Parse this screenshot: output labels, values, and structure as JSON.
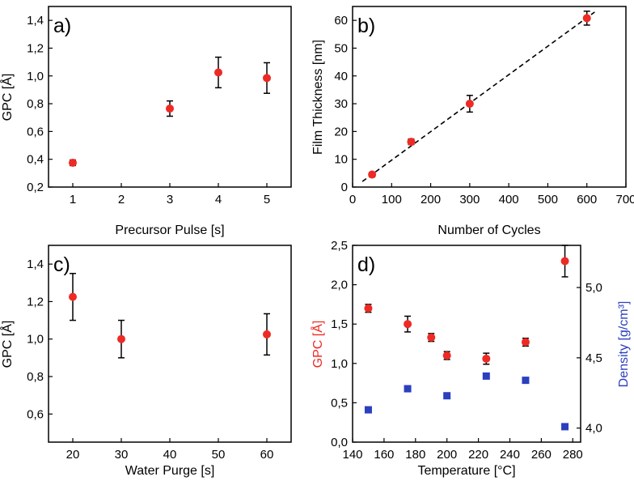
{
  "chart_data": [
    {
      "id": "a",
      "type": "scatter",
      "panel_label": "a)",
      "xlabel": "Precursor Pulse [s]",
      "ylabel": "GPC [Å]",
      "xlim": [
        0.5,
        5.5
      ],
      "ylim": [
        0.2,
        1.5
      ],
      "xticks": [
        "1",
        "2",
        "3",
        "4",
        "5"
      ],
      "yticks": [
        "0,2",
        "0,4",
        "0,6",
        "0,8",
        "1,0",
        "1,2",
        "1,4"
      ],
      "series": [
        {
          "name": "GPC",
          "color": "#ee2a24",
          "marker": "circle",
          "x": [
            1,
            3,
            4,
            5
          ],
          "y": [
            0.375,
            0.765,
            1.025,
            0.985
          ],
          "yerr": [
            0.02,
            0.055,
            0.11,
            0.11
          ]
        }
      ]
    },
    {
      "id": "b",
      "type": "scatter",
      "panel_label": "b)",
      "xlabel": "Number of Cycles",
      "ylabel": "Film Thickness [nm]",
      "xlim": [
        0,
        700
      ],
      "ylim": [
        0,
        65
      ],
      "xticks": [
        "0",
        "100",
        "200",
        "300",
        "400",
        "500",
        "600",
        "700"
      ],
      "yticks": [
        "0",
        "10",
        "20",
        "30",
        "40",
        "50",
        "60"
      ],
      "series": [
        {
          "name": "Film Thickness",
          "color": "#ee2a24",
          "marker": "circle",
          "x": [
            50,
            150,
            300,
            600
          ],
          "y": [
            4.5,
            16.3,
            30.0,
            60.8
          ],
          "yerr": [
            0.8,
            1.0,
            3.0,
            2.5
          ]
        }
      ],
      "fit_line": {
        "style": "dashed",
        "x": [
          25,
          620
        ],
        "y": [
          2.0,
          63.0
        ]
      }
    },
    {
      "id": "c",
      "type": "scatter",
      "panel_label": "c)",
      "xlabel": "Water Purge [s]",
      "ylabel": "GPC [Å]",
      "xlim": [
        15,
        65
      ],
      "ylim": [
        0.45,
        1.5
      ],
      "xticks": [
        "20",
        "30",
        "40",
        "50",
        "60"
      ],
      "yticks": [
        "0,6",
        "0,8",
        "1,0",
        "1,2",
        "1,4"
      ],
      "series": [
        {
          "name": "GPC",
          "color": "#ee2a24",
          "marker": "circle",
          "x": [
            20,
            30,
            60
          ],
          "y": [
            1.225,
            1.0,
            1.025
          ],
          "yerr": [
            0.125,
            0.1,
            0.11
          ]
        }
      ]
    },
    {
      "id": "d",
      "type": "scatter",
      "panel_label": "d)",
      "xlabel": "Temperature [°C]",
      "ylabel": "GPC [Å]",
      "ylabel_color": "#ee2a24",
      "y2label": "Density [g/cm³]",
      "y2label_color": "#2b3fbf",
      "xlim": [
        140,
        285
      ],
      "ylim": [
        0,
        2.5
      ],
      "y2lim": [
        3.9,
        5.3
      ],
      "xticks": [
        "140",
        "160",
        "180",
        "200",
        "220",
        "240",
        "260",
        "280"
      ],
      "yticks": [
        "0,0",
        "0,5",
        "1,0",
        "1,5",
        "2,0",
        "2,5"
      ],
      "y2ticks": [
        "4,0",
        "4,5",
        "5,0"
      ],
      "series": [
        {
          "name": "GPC",
          "color": "#ee2a24",
          "marker": "circle",
          "axis": "left",
          "x": [
            150,
            175,
            190,
            200,
            225,
            250,
            275
          ],
          "y": [
            1.7,
            1.5,
            1.33,
            1.1,
            1.06,
            1.27,
            2.3
          ],
          "yerr": [
            0.05,
            0.1,
            0.05,
            0.05,
            0.07,
            0.05,
            0.2
          ]
        },
        {
          "name": "Density",
          "color": "#2b3fbf",
          "marker": "square",
          "axis": "right",
          "x": [
            150,
            175,
            200,
            225,
            250,
            275
          ],
          "y": [
            4.13,
            4.28,
            4.23,
            4.37,
            4.34,
            4.01
          ]
        }
      ]
    }
  ]
}
